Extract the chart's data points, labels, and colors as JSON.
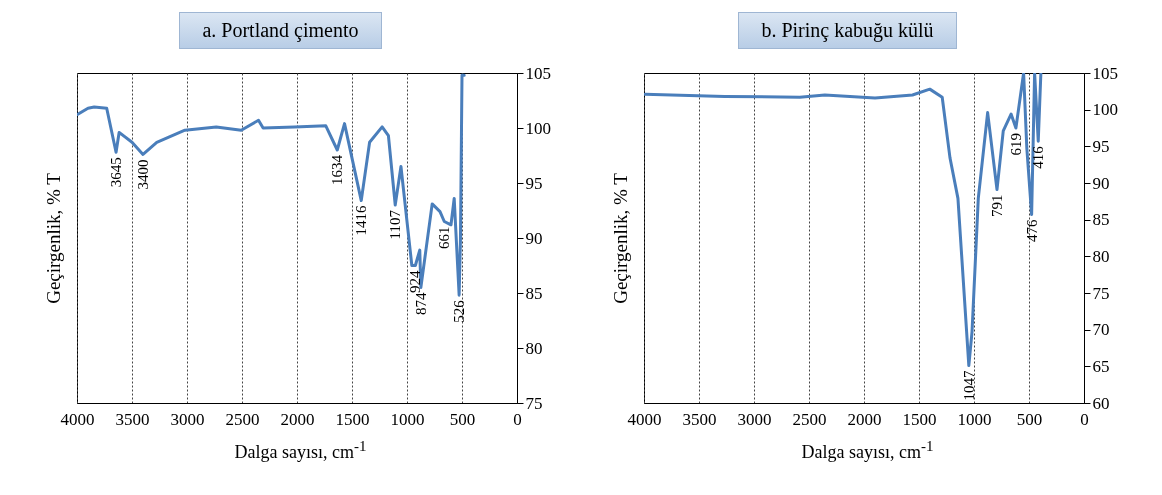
{
  "chart_data": [
    {
      "type": "line",
      "title": "a. Portland çimento",
      "xlabel": "Dalga sayısı, cm$^{-1}$",
      "ylabel": "Geçirgenlik, % T",
      "xlim": [
        4000,
        0
      ],
      "xticks": [
        4000,
        3500,
        3000,
        2500,
        2000,
        1500,
        1000,
        500,
        0
      ],
      "ylim": [
        75,
        105
      ],
      "yticks": [
        75,
        80,
        85,
        90,
        95,
        100,
        105
      ],
      "grid": "x",
      "series": [
        {
          "color": "#4a7ebb",
          "x": [
            4000,
            3900,
            3844,
            3730,
            3645,
            3617,
            3500,
            3400,
            3275,
            3019,
            2734,
            2507,
            2350,
            2308,
            2023,
            1738,
            1634,
            1568,
            1416,
            1340,
            1226,
            1169,
            1107,
            1055,
            956,
            924,
            884,
            874,
            771,
            700,
            661,
            600,
            571,
            526,
            514,
            500,
            480
          ],
          "values": [
            101.2,
            101.8,
            101.9,
            101.8,
            97.8,
            99.6,
            98.7,
            97.6,
            98.7,
            99.8,
            100.1,
            99.8,
            100.7,
            100,
            100.1,
            100.2,
            98,
            100.4,
            93.4,
            98.7,
            100.1,
            99.3,
            93,
            96.5,
            87.5,
            87.5,
            88.9,
            85.5,
            93.1,
            92.4,
            91.5,
            91.2,
            93.6,
            84.8,
            89.9,
            104.8,
            104.8
          ]
        }
      ],
      "annotations": [
        {
          "text": "3645",
          "x": 3645,
          "y": 97.8
        },
        {
          "text": "3400",
          "x": 3400,
          "y": 97.6
        },
        {
          "text": "1634",
          "x": 1634,
          "y": 98
        },
        {
          "text": "1416",
          "x": 1416,
          "y": 93.4
        },
        {
          "text": "1107",
          "x": 1107,
          "y": 93
        },
        {
          "text": "924",
          "x": 924,
          "y": 87.5
        },
        {
          "text": "874",
          "x": 874,
          "y": 85.5
        },
        {
          "text": "661",
          "x": 661,
          "y": 91.5
        },
        {
          "text": "526",
          "x": 526,
          "y": 84.8
        }
      ]
    },
    {
      "type": "line",
      "title": "b. Pirinç kabuğu külü",
      "xlabel": "Dalga sayısı, cm$^{-1}$",
      "ylabel": "Geçirgenlik, % T",
      "xlim": [
        4000,
        0
      ],
      "xticks": [
        4000,
        3500,
        3000,
        2500,
        2000,
        1500,
        1000,
        500,
        0
      ],
      "ylim": [
        60,
        105
      ],
      "yticks": [
        60,
        65,
        70,
        75,
        80,
        85,
        90,
        95,
        100,
        105
      ],
      "grid": "x",
      "series": [
        {
          "color": "#4a7ebb",
          "x": [
            3992,
            3267,
            2584,
            2356,
            1900,
            1559,
            1402,
            1289,
            1218,
            1146,
            1047,
            1018,
            961,
            876,
            791,
            734,
            663,
            619,
            549,
            520,
            476,
            449,
            416,
            392
          ],
          "values": [
            102.1,
            101.8,
            101.7,
            102,
            101.6,
            102,
            102.8,
            101.7,
            93.4,
            87.9,
            65.1,
            69.7,
            87.9,
            99.6,
            89.1,
            97.1,
            99.4,
            97.5,
            105,
            94.8,
            85.7,
            105,
            95.7,
            105
          ]
        }
      ],
      "annotations": [
        {
          "text": "1047",
          "x": 1047,
          "y": 65.1
        },
        {
          "text": "791",
          "x": 791,
          "y": 89.1
        },
        {
          "text": "619",
          "x": 619,
          "y": 97.5
        },
        {
          "text": "476",
          "x": 476,
          "y": 85.7
        },
        {
          "text": "416",
          "x": 416,
          "y": 95.7
        }
      ]
    }
  ]
}
